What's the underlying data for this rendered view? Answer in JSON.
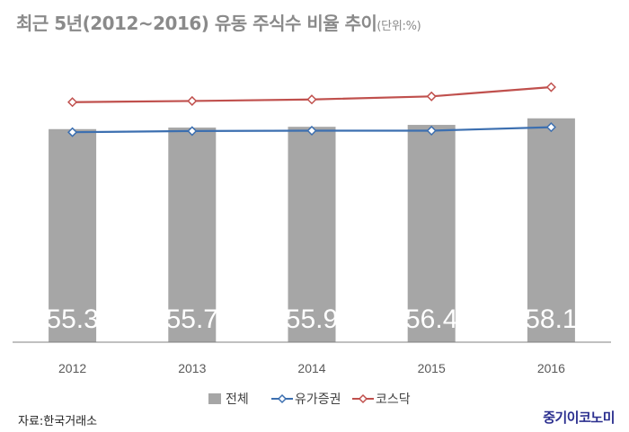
{
  "title": "최근 5년(2012~2016) 유동 주식수 비율 추이",
  "unit_label": "(단위:%)",
  "source": "자료:한국거래소",
  "logo_text": "중기이코노미",
  "colors": {
    "bar": "#a6a6a6",
    "line_securities": "#3c6fb0",
    "line_kosdaq": "#c0504d",
    "axis": "#808080",
    "tick_text": "#595959",
    "bar_label": "#ffffff",
    "title": "#8a8a8a",
    "logo": "#2b2f8f"
  },
  "chart_data": {
    "type": "bar",
    "categories": [
      "2012",
      "2013",
      "2014",
      "2015",
      "2016"
    ],
    "series": [
      {
        "name": "전체",
        "type": "bar",
        "values": [
          55.3,
          55.7,
          55.9,
          56.4,
          58.1
        ],
        "labels": [
          "55.3",
          "55.7",
          "55.9",
          "56.4",
          "58.1"
        ]
      },
      {
        "name": "유가증권",
        "type": "line",
        "values": [
          54.5,
          54.8,
          54.9,
          54.9,
          55.8
        ]
      },
      {
        "name": "코스닥",
        "type": "line",
        "values": [
          62.3,
          62.6,
          63.0,
          63.8,
          66.2
        ]
      }
    ],
    "ylim": [
      0,
      75
    ],
    "grid": false,
    "legend_position": "bottom-center"
  }
}
